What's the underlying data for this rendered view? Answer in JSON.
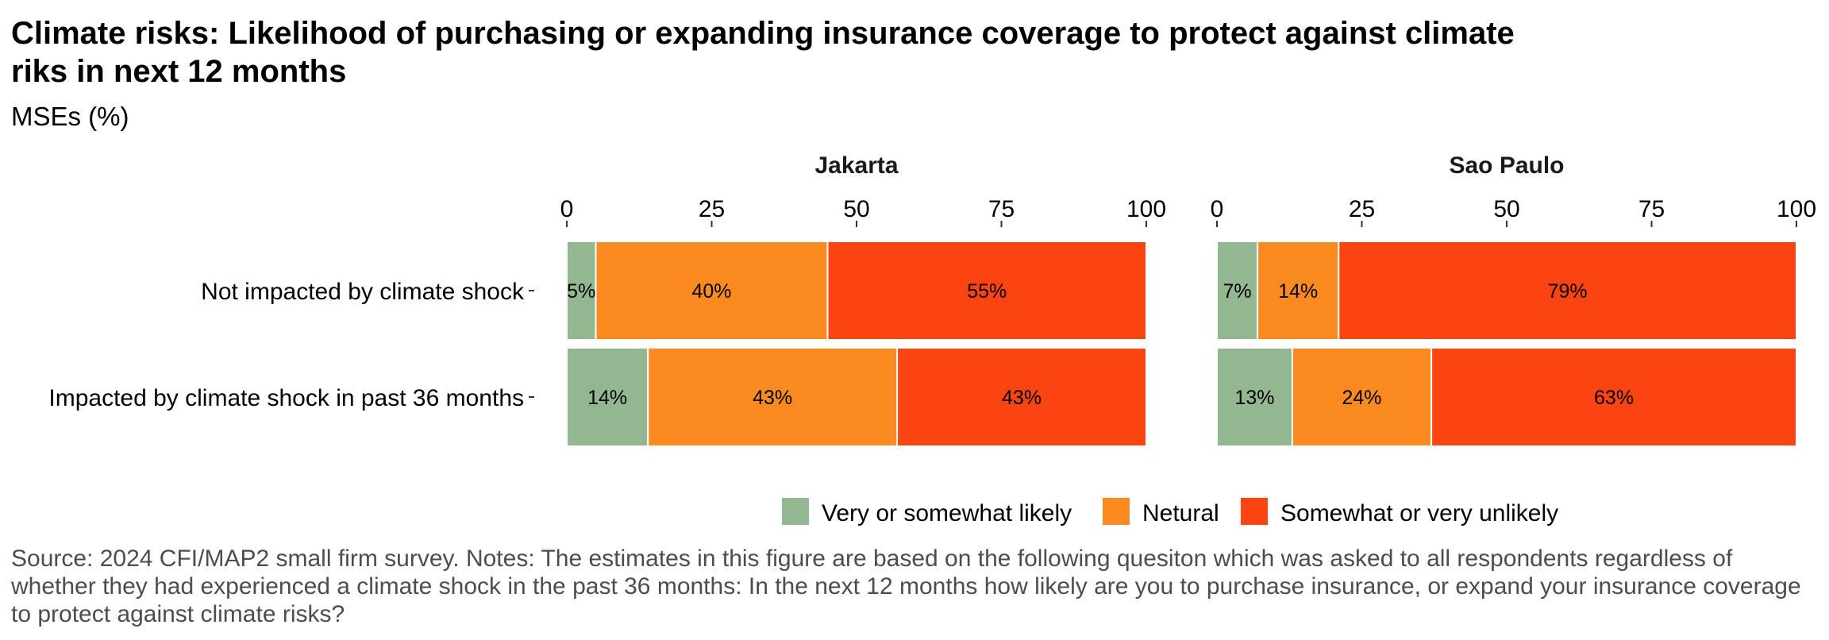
{
  "title": "Climate risks: Likelihood of purchasing or expanding insurance coverage to protect against climate riks in next 12 months",
  "subtitle": "MSEs (%)",
  "source": "Source: 2024 CFI/MAP2 small firm survey. Notes: The estimates in this figure are based on the following quesiton which was asked to all respondents regardless of whether they had experienced a climate shock in the past 36 months: In the next 12 months how likely are you to purchase insurance, or expand your insurance coverage to protect against climate risks?",
  "colors": {
    "likely": "#93b791",
    "neutral": "#fb8b20",
    "unlikely": "#fc4312"
  },
  "chart_data": {
    "type": "bar",
    "orientation": "horizontal",
    "stacked": true,
    "categories": [
      "Not impacted by climate shock",
      "Impacted by climate shock in past 36 months"
    ],
    "xlim": [
      0,
      100
    ],
    "x_ticks": [
      0,
      25,
      50,
      75,
      100
    ],
    "legend_position": "bottom",
    "grid": false,
    "legend": [
      "Very or somewhat likely",
      "Netural",
      "Somewhat or very unlikely"
    ],
    "panels": [
      {
        "name": "Jakarta",
        "series": [
          {
            "name": "Very or somewhat likely",
            "values": [
              5,
              14
            ],
            "labels": [
              "5%",
              "14%"
            ]
          },
          {
            "name": "Netural",
            "values": [
              40,
              43
            ],
            "labels": [
              "40%",
              "43%"
            ]
          },
          {
            "name": "Somewhat or very unlikely",
            "values": [
              55,
              43
            ],
            "labels": [
              "55%",
              "43%"
            ]
          }
        ]
      },
      {
        "name": "Sao Paulo",
        "series": [
          {
            "name": "Very or somewhat likely",
            "values": [
              7,
              13
            ],
            "labels": [
              "7%",
              "13%"
            ]
          },
          {
            "name": "Netural",
            "values": [
              14,
              24
            ],
            "labels": [
              "14%",
              "24%"
            ]
          },
          {
            "name": "Somewhat or very unlikely",
            "values": [
              79,
              63
            ],
            "labels": [
              "79%",
              "63%"
            ]
          }
        ]
      }
    ]
  }
}
